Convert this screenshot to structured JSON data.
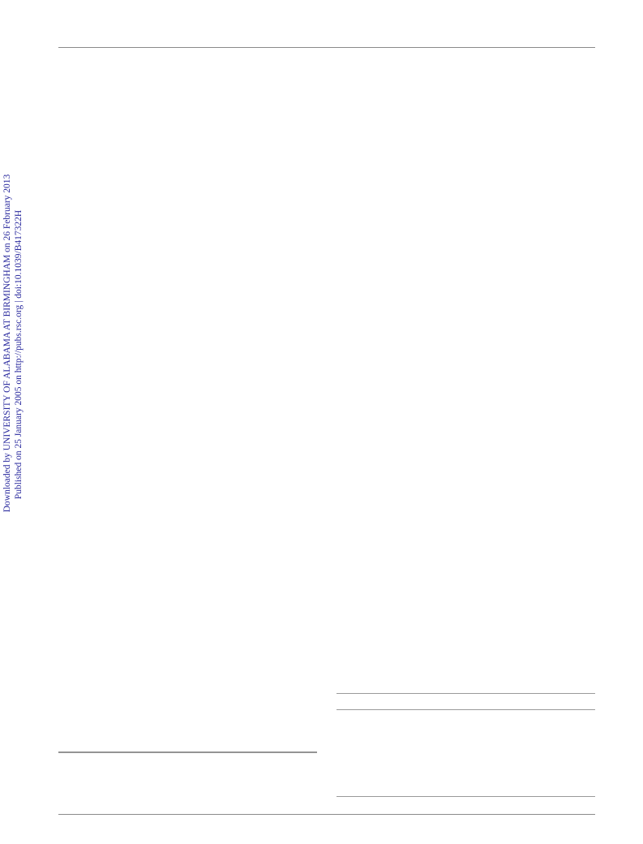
{
  "sidebar": {
    "download_notice": "Downloaded by UNIVERSITY OF ALABAMA AT BIRMINGHAM on 26 February 2013",
    "publication_notice": "Published on 25 January 2005 on http://pubs.rsc.org | doi:10.1039/B417322H"
  }
}
